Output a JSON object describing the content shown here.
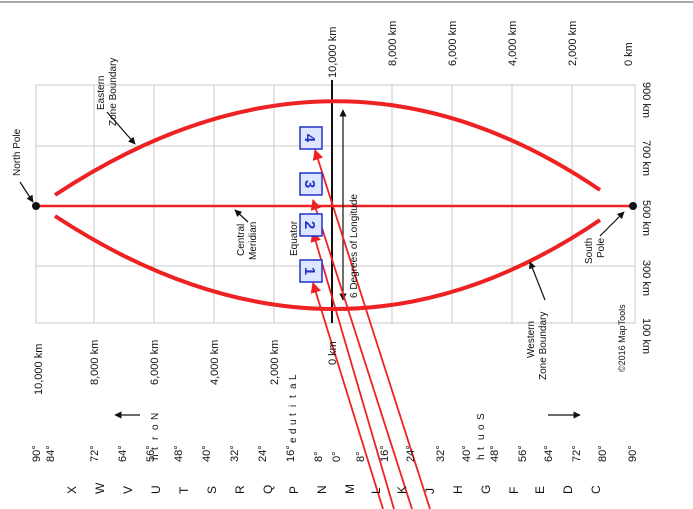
{
  "top_km_labels": [
    "10,000 km",
    "8,000 km",
    "6,000 km",
    "4,000 km",
    "2,000 km",
    "0 km"
  ],
  "left_km_labels": [
    "10,000 km",
    "8,000 km",
    "6,000 km",
    "4,000 km",
    "2,000 km",
    "0 km"
  ],
  "right_km_labels": [
    "900 km",
    "700 km",
    "500 km",
    "300 km",
    "100 km"
  ],
  "annotations": {
    "north_pole": "North Pole",
    "south_pole_1": "South",
    "south_pole_2": "Pole",
    "eastern_1": "Eastern",
    "eastern_2": "Zone Boundary",
    "western_1": "Western",
    "western_2": "Zone Boundary",
    "central_1": "Central",
    "central_2": "Meridian",
    "equator": "Equator",
    "longitude": "6 Degrees of Longitude",
    "copyright": "©2016 MapTools"
  },
  "boxes": [
    "1",
    "2",
    "3",
    "4"
  ],
  "latitude_degrees": [
    "90°",
    "84°",
    "72°",
    "64°",
    "56°",
    "48°",
    "40°",
    "32°",
    "24°",
    "16°",
    "8°",
    "0°",
    "8°",
    "16°",
    "24°",
    "32°",
    "40°",
    "48°",
    "56°",
    "64°",
    "72°",
    "80°",
    "90°"
  ],
  "band_letters": [
    "X",
    "W",
    "V",
    "U",
    "T",
    "S",
    "R",
    "Q",
    "P",
    "N",
    "M",
    "L",
    "K",
    "J",
    "H",
    "G",
    "F",
    "E",
    "D",
    "C"
  ],
  "north_letters": [
    "N",
    "o",
    "r",
    "t",
    "h"
  ],
  "latitude_letters": [
    "L",
    "a",
    "t",
    "i",
    "t",
    "u",
    "d",
    "e"
  ],
  "south_letters": [
    "S",
    "o",
    "u",
    "t",
    "h"
  ],
  "colors": {
    "red": "#ee2222",
    "box_blue": "#2233cc",
    "box_fill": "#dde6ff",
    "grid": "#c8c8c8"
  }
}
